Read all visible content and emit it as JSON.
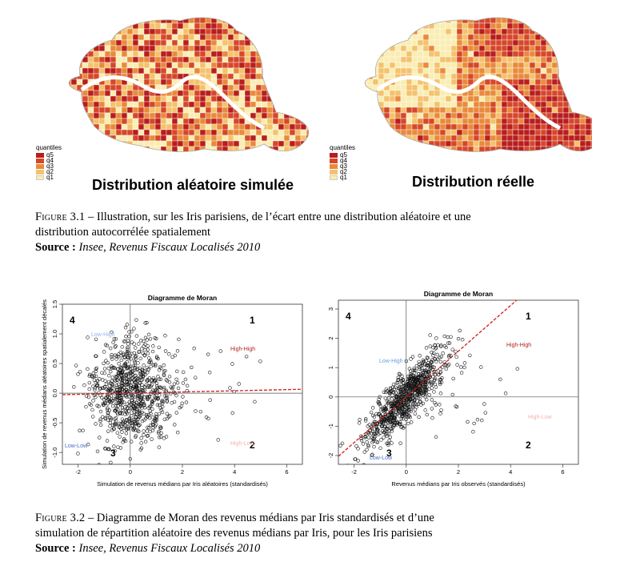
{
  "figure_3_1": {
    "maps": [
      {
        "title": "Distribution aléatoire simulée",
        "legend_title": "quantiles",
        "legend": [
          "q5",
          "q4",
          "q3",
          "q2",
          "q1"
        ]
      },
      {
        "title": "Distribution réelle",
        "legend_title": "quantiles",
        "legend": [
          "q5",
          "q4",
          "q3",
          "q2",
          "q1"
        ]
      }
    ],
    "quantile_colors": [
      "#b91d1d",
      "#d6472a",
      "#e88a3c",
      "#f4c26d",
      "#faedb2"
    ],
    "caption_label": "Figure 3.1",
    "caption_text": " – Illustration, sur les Iris parisiens, de l’écart entre une distribution aléatoire et une",
    "caption_text_2": "distribution autocorrélée spatialement",
    "source_label": "Source :",
    "source_text": " Insee, Revenus Fiscaux Localisés 2010"
  },
  "figure_3_2": {
    "caption_label": "Figure 3.2",
    "caption_text": " – Diagramme de Moran des revenus médians par Iris standardisés et d’une",
    "caption_text_2": "simulation de répartition aléatoire des revenus médians par Iris, pour les Iris parisiens",
    "source_label": "Source :",
    "source_text": " Insee, Revenus Fiscaux Localisés 2010"
  },
  "chart_data": [
    {
      "type": "scatter",
      "title": "Diagramme de Moran",
      "xlabel": "Simulation de revenus médians par Iris aléatoires (standardisés)",
      "ylabel": "Simulation de revenus médians aléatoires spatialement décalés",
      "xlim": [
        -2.6,
        6.6
      ],
      "ylim": [
        -1.2,
        1.5
      ],
      "xticks": [
        -2,
        0,
        2,
        4,
        6
      ],
      "yticks": [
        -1.0,
        -0.5,
        0.0,
        0.5,
        1.0,
        1.5
      ],
      "xtick_labels": [
        "-2",
        "0",
        "2",
        "4",
        "6"
      ],
      "ytick_labels": [
        "-1.0",
        "-0.5",
        "0.0",
        "0.5",
        "1.0",
        "1.5"
      ],
      "quadrant_numbers": [
        "1",
        "2",
        "3",
        "4"
      ],
      "quadrant_labels": [
        "High-High",
        "High-Low",
        "Low-Low",
        "Low-High"
      ],
      "regression": {
        "slope": 0.01,
        "intercept": 0.0
      },
      "point_cloud": {
        "n": 850,
        "x_mean": 0.0,
        "x_sd": 0.75,
        "y_mean": 0.0,
        "y_sd": 0.45,
        "correlation": 0.0
      }
    },
    {
      "type": "scatter",
      "title": "Diagramme de Moran",
      "xlabel": "Revenus médians par Iris observés (standardisés)",
      "ylabel": "",
      "xlim": [
        -2.6,
        6.6
      ],
      "ylim": [
        -2.3,
        3.3
      ],
      "xticks": [
        -2,
        0,
        2,
        4,
        6
      ],
      "yticks": [
        -2,
        -1,
        0,
        1,
        2,
        3
      ],
      "xtick_labels": [
        "-2",
        "0",
        "2",
        "4",
        "6"
      ],
      "ytick_labels": [
        "-2",
        "-1",
        "0",
        "1",
        "2",
        "3"
      ],
      "quadrant_numbers": [
        "1",
        "2",
        "3",
        "4"
      ],
      "quadrant_labels": [
        "High-High",
        "High-Low",
        "Low-Low",
        "Low-High"
      ],
      "regression": {
        "slope": 0.78,
        "intercept": 0.0
      },
      "point_cloud": {
        "n": 850,
        "x_mean": 0.0,
        "x_sd": 0.8,
        "y_mean": 0.0,
        "y_sd": 0.8,
        "correlation": 0.85
      }
    }
  ]
}
